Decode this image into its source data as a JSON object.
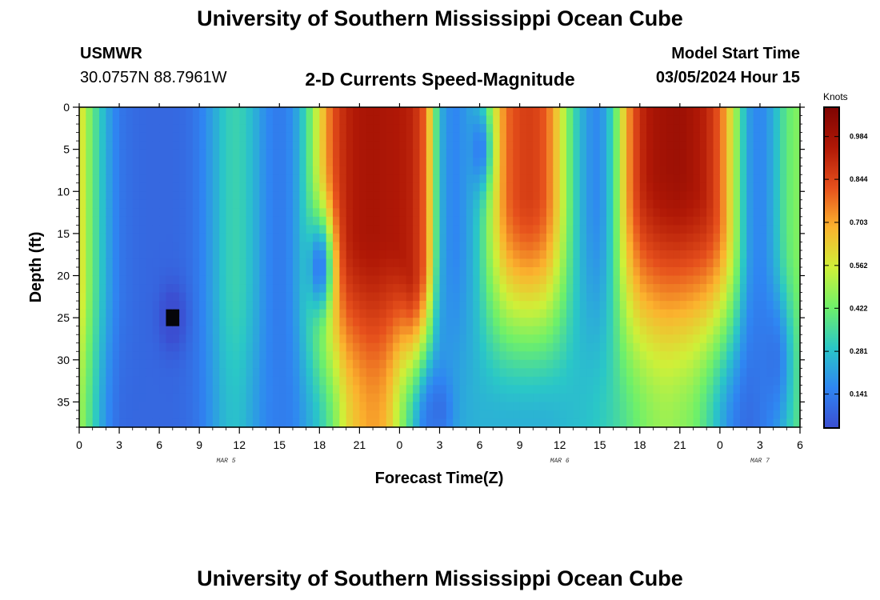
{
  "page": {
    "title": "University of Southern Mississippi Ocean Cube",
    "station": "USMWR",
    "coords": "30.0757N  88.7961W",
    "subtitle": "2-D Currents Speed-Magnitude",
    "start_label": "Model Start Time",
    "start_value": "03/05/2024 Hour 15",
    "footer_title": "University of Southern Mississippi Ocean Cube"
  },
  "colors": {
    "scale": [
      "#3b4ed1",
      "#2f86f2",
      "#2ac7c7",
      "#6ef06a",
      "#cff038",
      "#fbb32e",
      "#e6501c",
      "#b01806",
      "#7e0402"
    ]
  },
  "chart_data": {
    "type": "heatmap",
    "title": "2-D Currents Speed-Magnitude",
    "xlabel": "Forecast Time(Z)",
    "ylabel": "Depth (ft)",
    "x_tick_labels": [
      "0",
      "3",
      "6",
      "9",
      "12",
      "15",
      "18",
      "21",
      "0",
      "3",
      "6",
      "9",
      "12",
      "15",
      "18",
      "21",
      "0",
      "3",
      "6"
    ],
    "x_hours_range": [
      0,
      54
    ],
    "date_labels": [
      {
        "label": "MAR 5",
        "hour": 11
      },
      {
        "label": "MAR 6",
        "hour": 36
      },
      {
        "label": "MAR 7",
        "hour": 51
      }
    ],
    "y_ticks": [
      0,
      5,
      10,
      15,
      20,
      25,
      30,
      35
    ],
    "y_range": [
      0,
      38
    ],
    "y_inverted": true,
    "colorbar": {
      "unit": "Knots",
      "labels": [
        "0.984",
        "0.844",
        "0.703",
        "0.562",
        "0.422",
        "0.281",
        "0.141"
      ],
      "range": [
        0.03,
        1.08
      ]
    },
    "speed_by_hour": {
      "hours": [
        0,
        1,
        2,
        3,
        4,
        5,
        6,
        7,
        8,
        9,
        10,
        11,
        12,
        13,
        14,
        15,
        16,
        17,
        18,
        19,
        20,
        21,
        22,
        23,
        24,
        25,
        26,
        27,
        28,
        29,
        30,
        31,
        32,
        33,
        34,
        35,
        36,
        37,
        38,
        39,
        40,
        41,
        42,
        43,
        44,
        45,
        46,
        47,
        48,
        49,
        50,
        51,
        52,
        53,
        54
      ],
      "surface": [
        0.62,
        0.4,
        0.24,
        0.13,
        0.1,
        0.09,
        0.09,
        0.09,
        0.1,
        0.14,
        0.22,
        0.31,
        0.33,
        0.26,
        0.17,
        0.13,
        0.18,
        0.34,
        0.6,
        0.82,
        0.92,
        0.96,
        0.97,
        0.96,
        0.95,
        0.92,
        0.78,
        0.25,
        0.15,
        0.2,
        0.32,
        0.55,
        0.78,
        0.85,
        0.86,
        0.8,
        0.6,
        0.35,
        0.2,
        0.16,
        0.34,
        0.7,
        0.9,
        0.97,
        0.99,
        1.0,
        0.97,
        0.92,
        0.8,
        0.55,
        0.22,
        0.15,
        0.24,
        0.4,
        0.46
      ],
      "bottom": [
        0.5,
        0.34,
        0.18,
        0.1,
        0.09,
        0.09,
        0.09,
        0.09,
        0.1,
        0.13,
        0.2,
        0.27,
        0.28,
        0.22,
        0.16,
        0.14,
        0.15,
        0.22,
        0.3,
        0.42,
        0.6,
        0.68,
        0.72,
        0.68,
        0.5,
        0.3,
        0.13,
        0.18,
        0.22,
        0.24,
        0.25,
        0.25,
        0.25,
        0.25,
        0.25,
        0.25,
        0.26,
        0.27,
        0.28,
        0.3,
        0.33,
        0.38,
        0.43,
        0.47,
        0.49,
        0.47,
        0.44,
        0.36,
        0.25,
        0.15,
        0.1,
        0.12,
        0.2,
        0.32,
        0.4
      ],
      "core_depth": [
        20,
        20,
        20,
        20,
        20,
        20,
        20,
        20,
        20,
        20,
        20,
        20,
        20,
        20,
        20,
        20,
        20,
        20,
        18,
        16,
        15,
        14,
        14,
        14,
        16,
        20,
        18,
        14,
        14,
        14,
        14,
        12,
        10,
        10,
        10,
        10,
        10,
        10,
        10,
        10,
        12,
        9,
        8,
        7,
        7,
        7,
        8,
        10,
        12,
        14,
        16,
        16,
        16,
        16,
        16
      ]
    },
    "anomalies": [
      {
        "hour": 7,
        "depth": 25,
        "value": 0.0,
        "radius_depth": 5,
        "radius_hours": 1.3
      },
      {
        "hour": 18,
        "depth": 19,
        "value": 0.13,
        "radius_depth": 8,
        "radius_hours": 1.3
      },
      {
        "hour": 30,
        "depth": 5,
        "value": 0.14,
        "radius_depth": 6,
        "radius_hours": 1.0
      },
      {
        "hour": 27,
        "depth": 36,
        "value": 0.11,
        "radius_depth": 5,
        "radius_hours": 1.2
      },
      {
        "hour": 52,
        "depth": 30,
        "value": 0.12,
        "radius_depth": 10,
        "radius_hours": 1.6
      }
    ]
  }
}
